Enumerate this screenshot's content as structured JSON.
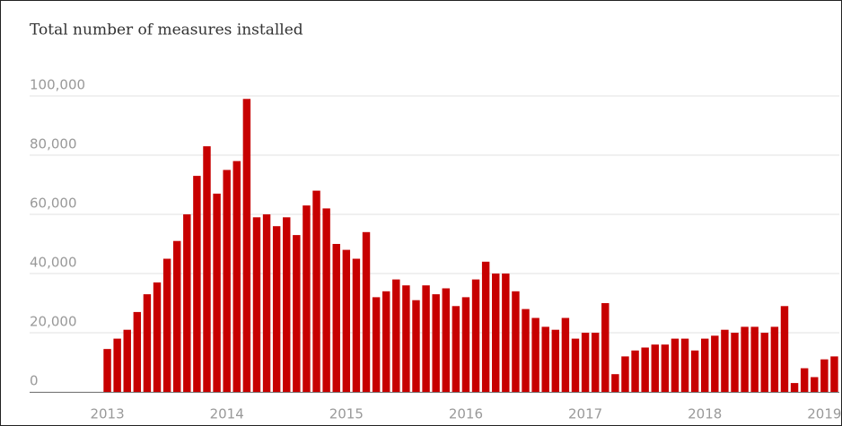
{
  "chart_data": {
    "type": "bar",
    "title": "Total number of measures installed",
    "categories": [
      "2013",
      null,
      null,
      null,
      null,
      null,
      null,
      null,
      null,
      null,
      null,
      null,
      "2014",
      null,
      null,
      null,
      null,
      null,
      null,
      null,
      null,
      null,
      null,
      null,
      "2015",
      null,
      null,
      null,
      null,
      null,
      null,
      null,
      null,
      null,
      null,
      null,
      "2016",
      null,
      null,
      null,
      null,
      null,
      null,
      null,
      null,
      null,
      null,
      null,
      "2017",
      null,
      null,
      null,
      null,
      null,
      null,
      null,
      null,
      null,
      null,
      null,
      "2018",
      null,
      null,
      null,
      null,
      null,
      null,
      null,
      null,
      null,
      null,
      null,
      "2019",
      null
    ],
    "values": [
      14500,
      18000,
      21000,
      27000,
      33000,
      37000,
      45000,
      51000,
      60000,
      73000,
      83000,
      67000,
      75000,
      78000,
      99000,
      59000,
      60000,
      56000,
      59000,
      53000,
      63000,
      68000,
      62000,
      50000,
      48000,
      45000,
      54000,
      32000,
      34000,
      38000,
      36000,
      31000,
      36000,
      33000,
      35000,
      29000,
      32000,
      38000,
      44000,
      40000,
      40000,
      34000,
      28000,
      25000,
      22000,
      21000,
      25000,
      18000,
      20000,
      20000,
      30000,
      6000,
      12000,
      14000,
      15000,
      16000,
      16000,
      18000,
      18000,
      14000,
      18000,
      19000,
      21000,
      20000,
      22000,
      22000,
      20000,
      22000,
      29000,
      3000,
      8000,
      5000,
      11000,
      12000
    ],
    "color": "#c70000",
    "ylim": [
      0,
      100000
    ],
    "yticks": [
      0,
      {
        "value": 20000,
        "label": "20,000"
      },
      {
        "value": 40000,
        "label": "40,000"
      },
      {
        "value": 60000,
        "label": "60,000"
      },
      {
        "value": 80000,
        "label": "80,000"
      },
      {
        "value": 100000,
        "label": "100,000"
      }
    ],
    "grid": true
  }
}
